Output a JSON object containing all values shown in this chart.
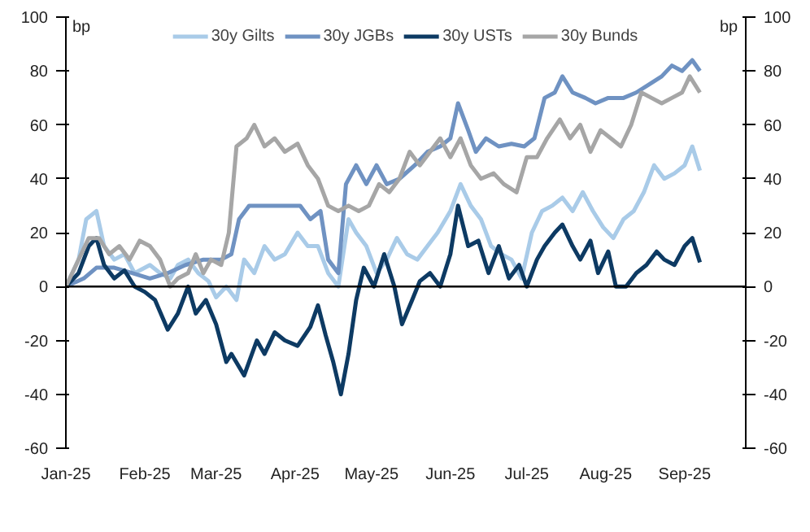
{
  "chart_data": {
    "type": "line",
    "ylabel": "bp",
    "y2label": "bp",
    "xlim": [
      "2025-01-01",
      "2025-09-25"
    ],
    "xticks": [
      {
        "value": "2025-01-01",
        "label": "Jan-25"
      },
      {
        "value": "2025-02-01",
        "label": "Feb-25"
      },
      {
        "value": "2025-03-01",
        "label": "Mar-25"
      },
      {
        "value": "2025-04-01",
        "label": "Apr-25"
      },
      {
        "value": "2025-05-01",
        "label": "May-25"
      },
      {
        "value": "2025-06-01",
        "label": "Jun-25"
      },
      {
        "value": "2025-07-01",
        "label": "Jul-25"
      },
      {
        "value": "2025-08-01",
        "label": "Aug-25"
      },
      {
        "value": "2025-09-01",
        "label": "Sep-25"
      }
    ],
    "ylim": [
      -60,
      100
    ],
    "yticks": [
      -60,
      -40,
      -20,
      0,
      20,
      40,
      60,
      80,
      100
    ],
    "y2lim": [
      -60,
      100
    ],
    "y2ticks": [
      -60,
      -40,
      -20,
      0,
      20,
      40,
      60,
      80,
      100
    ],
    "grid": false,
    "legend": "top",
    "marker": "none",
    "line_style": "solid",
    "ref_lines": [
      {
        "axis": "y",
        "value": 0,
        "color": "#000000"
      }
    ],
    "series": [
      {
        "name": "30y Gilts",
        "color": "#a9cbe8",
        "x": [
          "2025-01-01",
          "2025-01-06",
          "2025-01-09",
          "2025-01-13",
          "2025-01-16",
          "2025-01-20",
          "2025-01-24",
          "2025-01-28",
          "2025-02-03",
          "2025-02-07",
          "2025-02-11",
          "2025-02-14",
          "2025-02-18",
          "2025-02-22",
          "2025-02-26",
          "2025-03-01",
          "2025-03-05",
          "2025-03-09",
          "2025-03-12",
          "2025-03-16",
          "2025-03-20",
          "2025-03-24",
          "2025-03-28",
          "2025-04-02",
          "2025-04-06",
          "2025-04-10",
          "2025-04-14",
          "2025-04-18",
          "2025-04-22",
          "2025-04-25",
          "2025-04-29",
          "2025-05-03",
          "2025-05-07",
          "2025-05-11",
          "2025-05-15",
          "2025-05-19",
          "2025-05-23",
          "2025-05-27",
          "2025-06-01",
          "2025-06-05",
          "2025-06-09",
          "2025-06-13",
          "2025-06-17",
          "2025-06-21",
          "2025-06-25",
          "2025-06-29",
          "2025-07-03",
          "2025-07-07",
          "2025-07-11",
          "2025-07-15",
          "2025-07-19",
          "2025-07-23",
          "2025-07-27",
          "2025-07-31",
          "2025-08-04",
          "2025-08-08",
          "2025-08-12",
          "2025-08-16",
          "2025-08-20",
          "2025-08-24",
          "2025-08-28",
          "2025-09-01",
          "2025-09-04",
          "2025-09-07"
        ],
        "values": [
          0,
          10,
          25,
          28,
          15,
          10,
          12,
          5,
          8,
          5,
          3,
          8,
          10,
          5,
          2,
          -4,
          0,
          -5,
          10,
          5,
          15,
          10,
          12,
          20,
          15,
          15,
          5,
          0,
          25,
          20,
          15,
          5,
          10,
          18,
          12,
          10,
          15,
          20,
          28,
          38,
          30,
          25,
          15,
          12,
          10,
          3,
          20,
          28,
          30,
          33,
          28,
          35,
          28,
          22,
          18,
          25,
          28,
          35,
          45,
          40,
          42,
          45,
          52,
          43
        ]
      },
      {
        "name": "30y JGBs",
        "color": "#6f92c2",
        "x": [
          "2025-01-01",
          "2025-01-08",
          "2025-01-13",
          "2025-01-20",
          "2025-01-27",
          "2025-02-03",
          "2025-02-10",
          "2025-02-17",
          "2025-02-24",
          "2025-03-03",
          "2025-03-07",
          "2025-03-10",
          "2025-03-14",
          "2025-03-20",
          "2025-03-27",
          "2025-04-03",
          "2025-04-07",
          "2025-04-11",
          "2025-04-14",
          "2025-04-18",
          "2025-04-21",
          "2025-04-25",
          "2025-04-29",
          "2025-05-03",
          "2025-05-07",
          "2025-05-12",
          "2025-05-18",
          "2025-05-23",
          "2025-05-28",
          "2025-06-01",
          "2025-06-04",
          "2025-06-08",
          "2025-06-11",
          "2025-06-15",
          "2025-06-20",
          "2025-06-25",
          "2025-06-30",
          "2025-07-04",
          "2025-07-08",
          "2025-07-12",
          "2025-07-15",
          "2025-07-19",
          "2025-07-24",
          "2025-07-28",
          "2025-08-02",
          "2025-08-08",
          "2025-08-13",
          "2025-08-18",
          "2025-08-23",
          "2025-08-27",
          "2025-08-31",
          "2025-09-04",
          "2025-09-07"
        ],
        "values": [
          0,
          3,
          7,
          7,
          5,
          3,
          5,
          8,
          10,
          10,
          12,
          25,
          30,
          30,
          30,
          30,
          25,
          28,
          10,
          5,
          38,
          45,
          38,
          45,
          38,
          40,
          45,
          50,
          52,
          55,
          68,
          58,
          50,
          55,
          52,
          53,
          52,
          55,
          70,
          72,
          78,
          72,
          70,
          68,
          70,
          70,
          72,
          75,
          78,
          82,
          80,
          84,
          80
        ]
      },
      {
        "name": "30y USTs",
        "color": "#0d3a63",
        "x": [
          "2025-01-01",
          "2025-01-06",
          "2025-01-10",
          "2025-01-13",
          "2025-01-16",
          "2025-01-20",
          "2025-01-24",
          "2025-01-28",
          "2025-02-01",
          "2025-02-05",
          "2025-02-10",
          "2025-02-14",
          "2025-02-18",
          "2025-02-21",
          "2025-02-25",
          "2025-03-01",
          "2025-03-05",
          "2025-03-07",
          "2025-03-12",
          "2025-03-17",
          "2025-03-20",
          "2025-03-24",
          "2025-03-28",
          "2025-04-02",
          "2025-04-07",
          "2025-04-10",
          "2025-04-13",
          "2025-04-16",
          "2025-04-19",
          "2025-04-22",
          "2025-04-25",
          "2025-04-28",
          "2025-05-02",
          "2025-05-06",
          "2025-05-10",
          "2025-05-13",
          "2025-05-17",
          "2025-05-20",
          "2025-05-24",
          "2025-05-28",
          "2025-06-01",
          "2025-06-04",
          "2025-06-08",
          "2025-06-12",
          "2025-06-16",
          "2025-06-20",
          "2025-06-24",
          "2025-06-28",
          "2025-07-01",
          "2025-07-05",
          "2025-07-08",
          "2025-07-12",
          "2025-07-15",
          "2025-07-19",
          "2025-07-22",
          "2025-07-26",
          "2025-07-29",
          "2025-08-02",
          "2025-08-05",
          "2025-08-09",
          "2025-08-13",
          "2025-08-17",
          "2025-08-21",
          "2025-08-24",
          "2025-08-28",
          "2025-09-01",
          "2025-09-04",
          "2025-09-07"
        ],
        "values": [
          0,
          5,
          15,
          18,
          8,
          3,
          6,
          0,
          -2,
          -5,
          -16,
          -10,
          0,
          -10,
          -5,
          -14,
          -28,
          -25,
          -33,
          -20,
          -25,
          -17,
          -20,
          -22,
          -15,
          -7,
          -18,
          -28,
          -40,
          -25,
          -5,
          7,
          0,
          12,
          0,
          -14,
          -5,
          2,
          5,
          0,
          12,
          30,
          15,
          17,
          5,
          15,
          3,
          8,
          0,
          10,
          15,
          20,
          23,
          15,
          10,
          17,
          5,
          13,
          0,
          0,
          5,
          8,
          13,
          10,
          8,
          15,
          18,
          9
        ]
      },
      {
        "name": "30y Bunds",
        "color": "#a6a6a6",
        "x": [
          "2025-01-01",
          "2025-01-06",
          "2025-01-10",
          "2025-01-14",
          "2025-01-18",
          "2025-01-22",
          "2025-01-26",
          "2025-01-30",
          "2025-02-03",
          "2025-02-07",
          "2025-02-11",
          "2025-02-14",
          "2025-02-18",
          "2025-02-21",
          "2025-02-24",
          "2025-02-27",
          "2025-03-03",
          "2025-03-06",
          "2025-03-09",
          "2025-03-13",
          "2025-03-16",
          "2025-03-20",
          "2025-03-24",
          "2025-03-28",
          "2025-04-02",
          "2025-04-06",
          "2025-04-10",
          "2025-04-14",
          "2025-04-18",
          "2025-04-22",
          "2025-04-26",
          "2025-04-30",
          "2025-05-04",
          "2025-05-08",
          "2025-05-12",
          "2025-05-16",
          "2025-05-20",
          "2025-05-24",
          "2025-05-28",
          "2025-06-01",
          "2025-06-05",
          "2025-06-09",
          "2025-06-13",
          "2025-06-18",
          "2025-06-22",
          "2025-06-27",
          "2025-07-01",
          "2025-07-05",
          "2025-07-09",
          "2025-07-14",
          "2025-07-18",
          "2025-07-22",
          "2025-07-26",
          "2025-07-30",
          "2025-08-03",
          "2025-08-07",
          "2025-08-11",
          "2025-08-15",
          "2025-08-19",
          "2025-08-23",
          "2025-08-27",
          "2025-08-31",
          "2025-09-03",
          "2025-09-07"
        ],
        "values": [
          0,
          10,
          18,
          18,
          12,
          15,
          10,
          17,
          15,
          10,
          0,
          3,
          5,
          12,
          5,
          10,
          8,
          20,
          52,
          55,
          60,
          52,
          55,
          50,
          53,
          45,
          40,
          30,
          28,
          30,
          28,
          30,
          38,
          35,
          40,
          50,
          45,
          50,
          55,
          48,
          55,
          45,
          40,
          42,
          38,
          35,
          48,
          48,
          55,
          62,
          55,
          60,
          50,
          58,
          55,
          52,
          60,
          72,
          70,
          68,
          70,
          72,
          78,
          72
        ]
      }
    ]
  }
}
